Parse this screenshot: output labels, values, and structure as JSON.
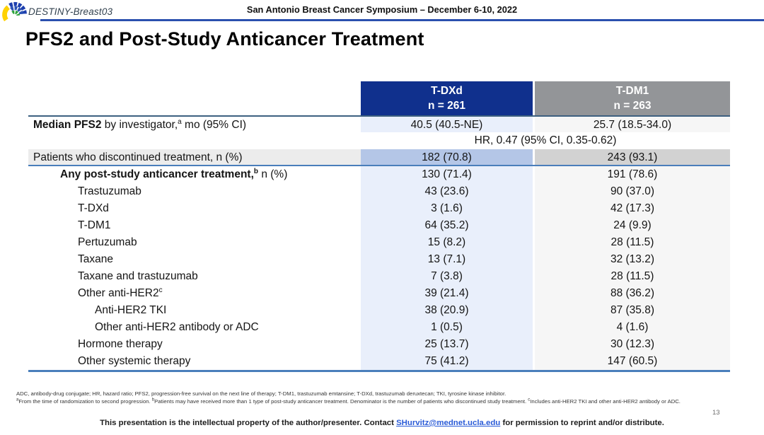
{
  "slide": {
    "study_name": "DESTINY-Breast03",
    "symposium_title": "San Antonio Breast Cancer Symposium – December 6-10, 2022",
    "title": "PFS2 and Post-Study Anticancer Treatment",
    "page_number": "13"
  },
  "colors": {
    "tdxd_header": "#10308d",
    "tdm1_header": "#939598",
    "tdxd_light": "#e9effb",
    "tdm1_light": "#f6f6f6",
    "tdxd_medium": "#b4c6e7",
    "tdm1_medium": "#d2d2d2",
    "label_row_gray": "#ececec",
    "header_rule_blue": "#2b50ae",
    "table_line_dark": "#3d6080",
    "table_line_blue": "#4a7ebb",
    "link_blue": "#2a5bd7"
  },
  "table": {
    "columns": [
      {
        "name": "T-DXd",
        "n_label": "n = 261"
      },
      {
        "name": "T-DM1",
        "n_label": "n = 263"
      }
    ],
    "rows": [
      {
        "name": "median-pfs2",
        "indent": 0,
        "shade": "light",
        "top_border": true,
        "label_segments": [
          {
            "t": "Median PFS2",
            "b": 1
          },
          {
            "t": " by investigator,"
          },
          {
            "t": "a",
            "sup": 1
          },
          {
            "t": " mo (95% CI)"
          }
        ],
        "tdxd": "40.5 (40.5-NE)",
        "tdm1": "25.7 (18.5-34.0)"
      },
      {
        "name": "hazard-ratio",
        "type": "span",
        "span_text": "HR, 0.47 (95% CI, 0.35-0.62)"
      },
      {
        "name": "patients-discontinued",
        "indent": 0,
        "shade": "medium",
        "label_bg": "#ececec",
        "bottom_border": true,
        "label_segments": [
          {
            "t": "Patients who discontinued treatment, n (%)"
          }
        ],
        "tdxd": "182 (70.8)",
        "tdm1": "243 (93.1)"
      },
      {
        "name": "any-post-study-treatment",
        "indent": 1,
        "shade": "light",
        "label_segments": [
          {
            "t": "Any post-study anticancer treatment,",
            "b": 1
          },
          {
            "t": "b",
            "sup": 1,
            "b": 1
          },
          {
            "t": " n (%)"
          }
        ],
        "tdxd": "130 (71.4)",
        "tdm1": "191 (78.6)"
      },
      {
        "name": "trastuzumab",
        "indent": 2,
        "shade": "light",
        "label_segments": [
          {
            "t": "Trastuzumab"
          }
        ],
        "tdxd": "43 (23.6)",
        "tdm1": "90 (37.0)"
      },
      {
        "name": "t-dxd",
        "indent": 2,
        "shade": "light",
        "label_segments": [
          {
            "t": "T-DXd"
          }
        ],
        "tdxd": "3 (1.6)",
        "tdm1": "42 (17.3)"
      },
      {
        "name": "t-dm1",
        "indent": 2,
        "shade": "light",
        "label_segments": [
          {
            "t": "T-DM1"
          }
        ],
        "tdxd": "64 (35.2)",
        "tdm1": "24 (9.9)"
      },
      {
        "name": "pertuzumab",
        "indent": 2,
        "shade": "light",
        "label_segments": [
          {
            "t": "Pertuzumab"
          }
        ],
        "tdxd": "15 (8.2)",
        "tdm1": "28 (11.5)"
      },
      {
        "name": "taxane",
        "indent": 2,
        "shade": "light",
        "label_segments": [
          {
            "t": "Taxane"
          }
        ],
        "tdxd": "13 (7.1)",
        "tdm1": "32 (13.2)"
      },
      {
        "name": "taxane-and-trastuzumab",
        "indent": 2,
        "shade": "light",
        "label_segments": [
          {
            "t": "Taxane and trastuzumab"
          }
        ],
        "tdxd": "7 (3.8)",
        "tdm1": "28 (11.5)"
      },
      {
        "name": "other-anti-her2",
        "indent": 2,
        "shade": "light",
        "label_segments": [
          {
            "t": "Other anti-HER2"
          },
          {
            "t": "c",
            "sup": 1
          }
        ],
        "tdxd": "39 (21.4)",
        "tdm1": "88 (36.2)"
      },
      {
        "name": "anti-her2-tki",
        "indent": 3,
        "shade": "light",
        "label_segments": [
          {
            "t": "Anti-HER2 TKI"
          }
        ],
        "tdxd": "38 (20.9)",
        "tdm1": "87 (35.8)"
      },
      {
        "name": "other-anti-her2-antibody-or-adc",
        "indent": 3,
        "shade": "light",
        "label_segments": [
          {
            "t": "Other anti-HER2 antibody or ADC"
          }
        ],
        "tdxd": "1 (0.5)",
        "tdm1": "4 (1.6)"
      },
      {
        "name": "hormone-therapy",
        "indent": 2,
        "shade": "light",
        "label_segments": [
          {
            "t": "Hormone therapy"
          }
        ],
        "tdxd": "25 (13.7)",
        "tdm1": "30 (12.3)"
      },
      {
        "name": "other-systemic-therapy",
        "indent": 2,
        "shade": "light",
        "label_segments": [
          {
            "t": "Other systemic therapy"
          }
        ],
        "tdxd": "75 (41.2)",
        "tdm1": "147 (60.5)"
      }
    ]
  },
  "footnotes": {
    "abbreviations": "ADC, antibody-drug conjugate; HR, hazard ratio; PFS2, progression-free survival on the next line of therapy; T-DM1, trastuzumab emtansine; T-DXd, trastuzumab deruxtecan; TKI, tyrosine kinase inhibitor.",
    "notes_segments": [
      {
        "t": "a",
        "sup": 1
      },
      {
        "t": "From the time of randomization to second progression. "
      },
      {
        "t": "b",
        "sup": 1
      },
      {
        "t": "Patients may have received more than 1 type of post-study anticancer treatment. Denominator is the number of patients who discontinued study treatment. "
      },
      {
        "t": "c",
        "sup": 1
      },
      {
        "t": "Includes anti-HER2 TKI and other anti-HER2 antibody or ADC."
      }
    ]
  },
  "contact": {
    "prefix": "This presentation is the intellectual property of the author/presenter. Contact ",
    "email": "SHurvitz@mednet.ucla.edu",
    "suffix": " for permission to reprint and/or distribute."
  }
}
